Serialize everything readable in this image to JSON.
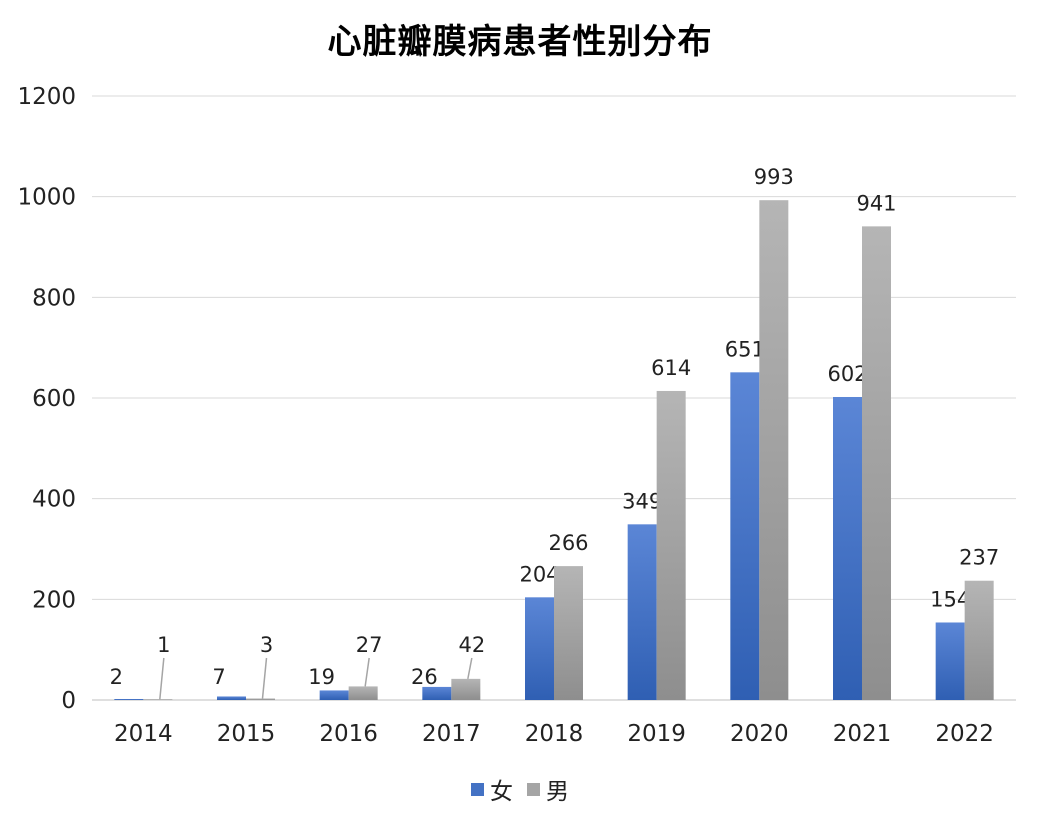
{
  "chart_data": {
    "type": "bar",
    "title": "心脏瓣膜病患者性别分布",
    "categories": [
      "2014",
      "2015",
      "2016",
      "2017",
      "2018",
      "2019",
      "2020",
      "2021",
      "2022"
    ],
    "series": [
      {
        "name": "女",
        "color": "#4472C4",
        "values": [
          2,
          7,
          19,
          26,
          204,
          349,
          651,
          602,
          154
        ]
      },
      {
        "name": "男",
        "color": "#A5A5A5",
        "values": [
          1,
          3,
          27,
          42,
          266,
          614,
          993,
          941,
          237
        ]
      }
    ],
    "y_ticks": [
      "0",
      "200",
      "400",
      "600",
      "800",
      "1000",
      "1200"
    ],
    "ylim": [
      0,
      1200
    ],
    "grid": true,
    "legend_position": "bottom"
  }
}
